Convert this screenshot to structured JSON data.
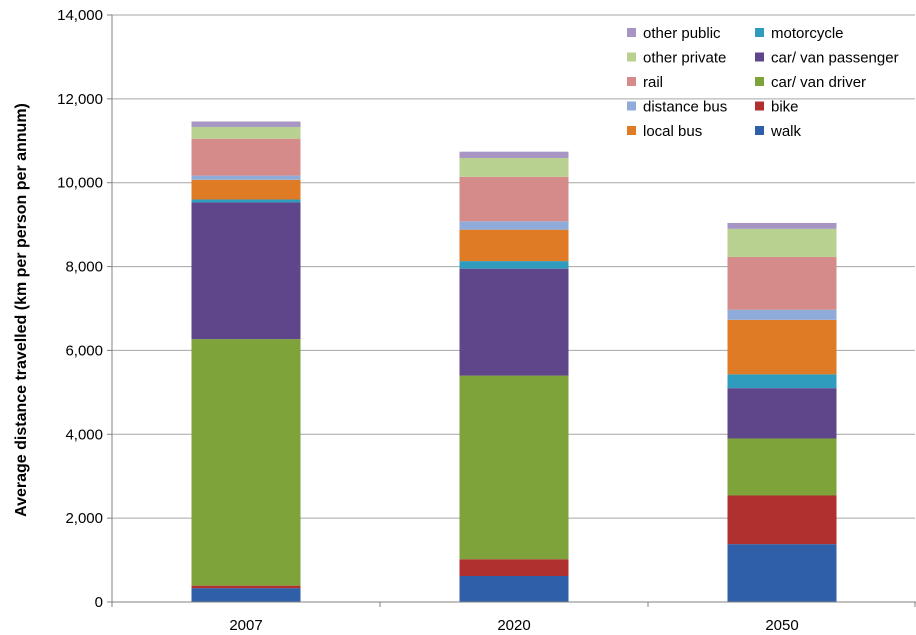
{
  "chart_data": {
    "type": "bar",
    "stacked": true,
    "title": "",
    "xlabel": "",
    "ylabel": "Average distance travelled (km per person per annum)",
    "ylim": [
      0,
      14000
    ],
    "yticks": [
      0,
      2000,
      4000,
      6000,
      8000,
      10000,
      12000,
      14000
    ],
    "ytick_labels": [
      "0",
      "2,000",
      "4,000",
      "6,000",
      "8,000",
      "10,000",
      "12,000",
      "14,000"
    ],
    "grid": "horizontal",
    "legend_position": "top-right",
    "categories": [
      "2007",
      "2020",
      "2050"
    ],
    "series": [
      {
        "name": "walk",
        "color": "#2f5fa8",
        "values": [
          330,
          620,
          1380
        ]
      },
      {
        "name": "bike",
        "color": "#b03030",
        "values": [
          60,
          400,
          1160
        ]
      },
      {
        "name": "car/ van driver",
        "color": "#7da33a",
        "values": [
          5880,
          4380,
          1360
        ]
      },
      {
        "name": "car/ van passenger",
        "color": "#5f4589",
        "values": [
          3260,
          2550,
          1200
        ]
      },
      {
        "name": "motorcycle",
        "color": "#2f9bbd",
        "values": [
          70,
          180,
          330
        ]
      },
      {
        "name": "local bus",
        "color": "#e07b25",
        "values": [
          470,
          750,
          1300
        ]
      },
      {
        "name": "distance bus",
        "color": "#8fabd9",
        "values": [
          100,
          200,
          240
        ]
      },
      {
        "name": "rail",
        "color": "#d68b8b",
        "values": [
          880,
          1060,
          1260
        ]
      },
      {
        "name": "other private",
        "color": "#b8d190",
        "values": [
          280,
          450,
          670
        ]
      },
      {
        "name": "other public",
        "color": "#a795c4",
        "values": [
          130,
          150,
          140
        ]
      }
    ],
    "legend_order": [
      [
        "other public",
        "motorcycle"
      ],
      [
        "other private",
        "car/ van passenger"
      ],
      [
        "rail",
        "car/ van driver"
      ],
      [
        "distance bus",
        "bike"
      ],
      [
        "local bus",
        "walk"
      ]
    ]
  }
}
